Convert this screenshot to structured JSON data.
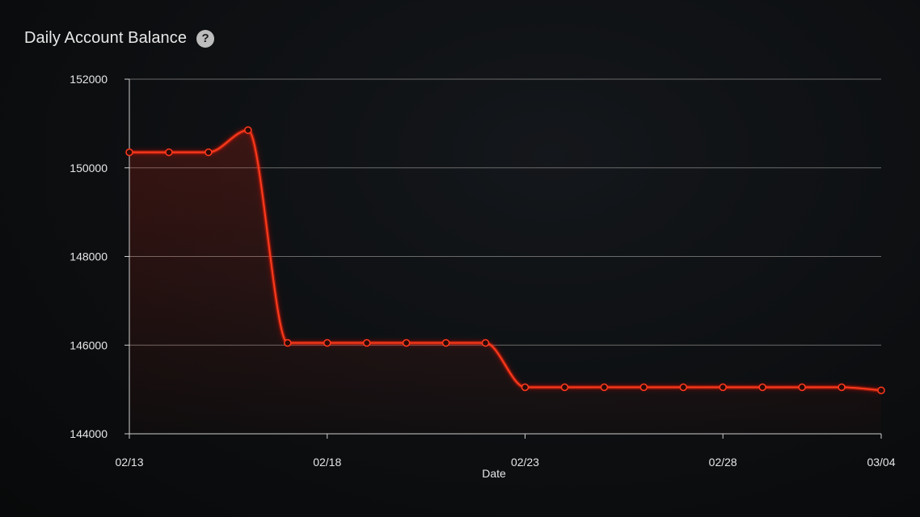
{
  "header": {
    "title": "Daily Account Balance",
    "help_glyph": "?",
    "help_icon": "question-circle-icon"
  },
  "colors": {
    "line": "#ff3a1f",
    "glow": "#ff2200",
    "grid": "#6a6a6a",
    "axis": "#cfcfcf",
    "text": "#e6e6e6"
  },
  "chart_data": {
    "type": "line",
    "title": "Daily Account Balance",
    "xlabel": "Date",
    "ylabel": "",
    "x": [
      "02/13",
      "02/14",
      "02/15",
      "02/16",
      "02/17",
      "02/18",
      "02/19",
      "02/20",
      "02/21",
      "02/22",
      "02/23",
      "02/24",
      "02/25",
      "02/26",
      "02/27",
      "02/28",
      "03/01",
      "03/02",
      "03/03",
      "03/04"
    ],
    "x_dates": [
      "02/13",
      "02/14",
      "02/15",
      "02/16",
      "02/17",
      "02/18",
      "02/19",
      "02/20",
      "02/21",
      "02/22",
      "02/23",
      "02/24",
      "02/25",
      "02/26",
      "02/27",
      "02/28",
      "03/01",
      "03/02",
      "03/03",
      "03/04"
    ],
    "series": [
      {
        "values": [
          150350,
          150350,
          150350,
          150850,
          146050,
          146050,
          146050,
          146050,
          146050,
          146050,
          145050,
          145050,
          145050,
          145050,
          145050,
          145050,
          145050,
          145050,
          145050,
          144980
        ]
      }
    ],
    "x_ticks": [
      "02/13",
      "02/18",
      "02/23",
      "02/28",
      "03/04"
    ],
    "y_ticks": [
      "144000",
      "146000",
      "148000",
      "150000",
      "152000"
    ],
    "ylim": [
      144000,
      152000
    ],
    "grid": true,
    "legend": "none"
  }
}
